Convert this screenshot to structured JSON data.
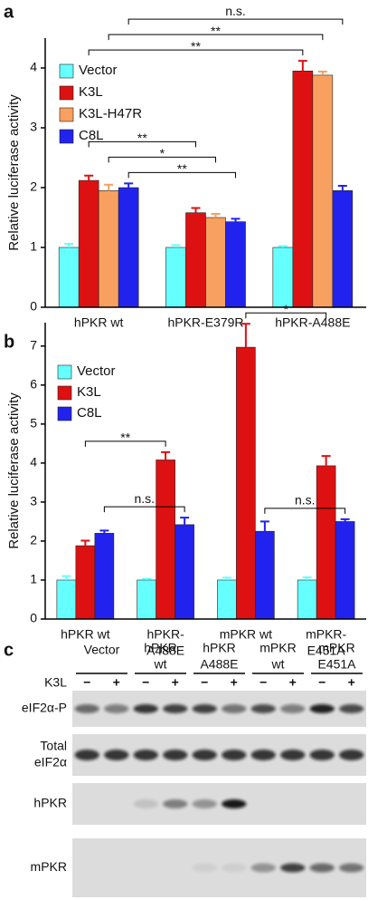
{
  "chart_data": [
    {
      "panel_label": "a",
      "type": "bar",
      "y_label": "Relative luciferase activity",
      "categories": [
        "hPKR wt",
        "hPKR-E379R",
        "hPKR-A488E"
      ],
      "series": [
        {
          "name": "Vector",
          "color": "#66ffff",
          "values": [
            1.0,
            1.0,
            1.0
          ],
          "errors": [
            0.06,
            0.04,
            0.02
          ]
        },
        {
          "name": "K3L",
          "color": "#dd1111",
          "values": [
            2.12,
            1.58,
            3.95
          ],
          "errors": [
            0.08,
            0.08,
            0.17
          ]
        },
        {
          "name": "K3L-H47R",
          "color": "#f7a060",
          "values": [
            1.95,
            1.5,
            3.88
          ],
          "errors": [
            0.1,
            0.06,
            0.06
          ]
        },
        {
          "name": "C8L",
          "color": "#2222ee",
          "values": [
            2.0,
            1.43,
            1.95
          ],
          "errors": [
            0.07,
            0.05,
            0.08
          ]
        }
      ],
      "ylim": [
        0,
        4.5
      ],
      "yticks": [
        0,
        1,
        2,
        3,
        4
      ],
      "legend": "upper left",
      "significance": [
        {
          "label": "**",
          "from": [
            0,
            3
          ],
          "to": [
            1,
            3
          ]
        },
        {
          "label": "*",
          "from": [
            0,
            2
          ],
          "to": [
            1,
            2
          ]
        },
        {
          "label": "**",
          "from": [
            0,
            1
          ],
          "to": [
            1,
            1
          ]
        },
        {
          "label": "**",
          "from": [
            0,
            1
          ],
          "to": [
            2,
            1
          ]
        },
        {
          "label": "**",
          "from": [
            0,
            2
          ],
          "to": [
            2,
            2
          ]
        },
        {
          "label": "n.s.",
          "from": [
            0,
            3
          ],
          "to": [
            2,
            3
          ]
        }
      ]
    },
    {
      "panel_label": "b",
      "type": "bar",
      "y_label": "Relative luciferase activity",
      "categories": [
        [
          "hPKR wt"
        ],
        [
          "hPKR-",
          "A488E"
        ],
        [
          "mPKR wt"
        ],
        [
          "mPKR-",
          "E451A"
        ]
      ],
      "series": [
        {
          "name": "Vector",
          "color": "#66ffff",
          "values": [
            1.0,
            1.0,
            1.0,
            1.0
          ],
          "errors": [
            0.1,
            0.03,
            0.06,
            0.07
          ]
        },
        {
          "name": "K3L",
          "color": "#dd1111",
          "values": [
            1.88,
            4.08,
            6.97,
            3.93
          ],
          "errors": [
            0.13,
            0.2,
            0.6,
            0.25
          ]
        },
        {
          "name": "C8L",
          "color": "#2222ee",
          "values": [
            2.2,
            2.42,
            2.25,
            2.5
          ],
          "errors": [
            0.07,
            0.18,
            0.25,
            0.06
          ]
        }
      ],
      "ylim": [
        0,
        7.6
      ],
      "yticks": [
        0,
        1,
        2,
        3,
        4,
        5,
        6,
        7
      ],
      "legend": "upper left",
      "significance": [
        {
          "label": "n.s.",
          "from": [
            0,
            2
          ],
          "to": [
            1,
            2
          ]
        },
        {
          "label": "**",
          "from": [
            0,
            1
          ],
          "to": [
            1,
            1
          ]
        },
        {
          "label": "n.s.",
          "from": [
            2,
            2
          ],
          "to": [
            3,
            2
          ]
        },
        {
          "label": "*",
          "from": [
            2,
            1
          ],
          "to": [
            3,
            1
          ]
        }
      ]
    }
  ],
  "blot": {
    "panel_label": "c",
    "k3l_label": "K3L",
    "groups": [
      {
        "label": [
          "Vector"
        ],
        "lanes": [
          "−",
          "+"
        ]
      },
      {
        "label": [
          "hPKR",
          "wt"
        ],
        "lanes": [
          "−",
          "+"
        ]
      },
      {
        "label": [
          "hPKR",
          "A488E"
        ],
        "lanes": [
          "−",
          "+"
        ]
      },
      {
        "label": [
          "mPKR",
          "wt"
        ],
        "lanes": [
          "−",
          "+"
        ]
      },
      {
        "label": [
          "mPKR",
          "E451A"
        ],
        "lanes": [
          "−",
          "+"
        ]
      }
    ],
    "rows": [
      {
        "label": [
          "eIF2α-P"
        ]
      },
      {
        "label": [
          "Total",
          "eIF2α"
        ]
      },
      {
        "label": [
          "hPKR"
        ]
      },
      {
        "label": [
          "mPKR"
        ]
      }
    ]
  }
}
